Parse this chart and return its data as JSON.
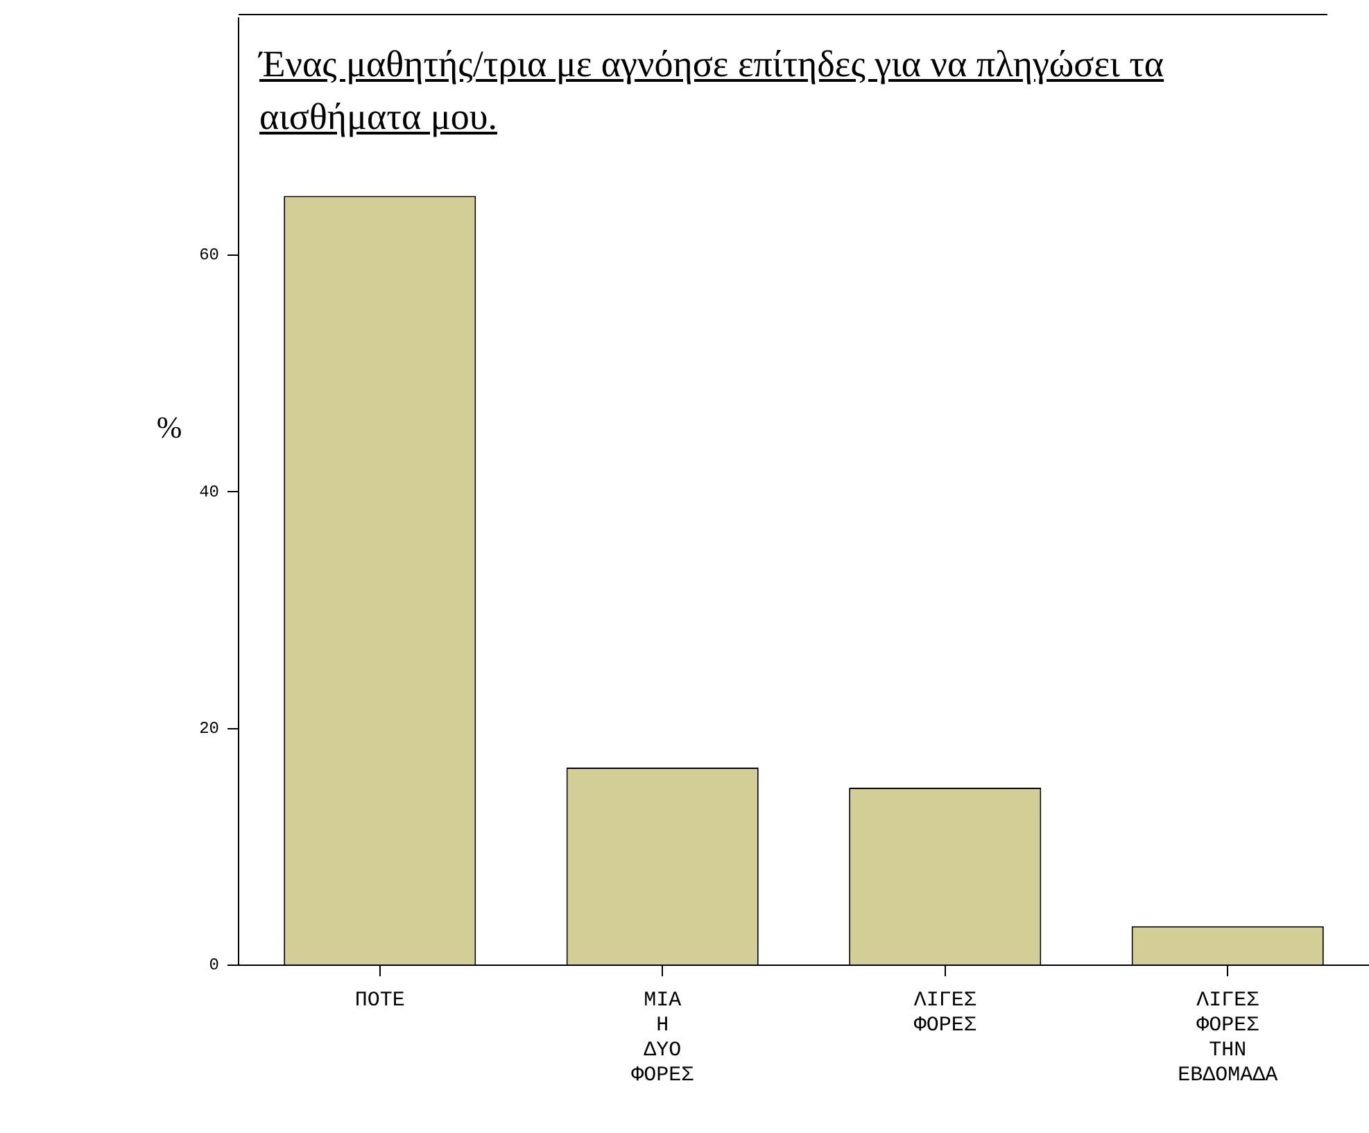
{
  "chart_data": {
    "type": "bar",
    "title": "Ένας μαθητής/τρια με αγνόησε επίτηδες για να πληγώσει τα αισθήματα μου.",
    "ylabel": "%",
    "categories": [
      "ΠΟΤΕ",
      "ΜΙΑ Η ΔΥΟ ΦΟΡΕΣ",
      "ΛΙΓΕΣ ΦΟΡΕΣ",
      "ΛΙΓΕΣ ΦΟΡΕΣ ΤΗΝ ΕΒΔΟΜΑΔΑ"
    ],
    "values": [
      65.0,
      16.7,
      15.0,
      3.3
    ],
    "color": "#d3cd96",
    "ylim": [
      0,
      80
    ],
    "yticks": [
      0,
      20,
      40,
      60
    ],
    "grid": false,
    "legend": false
  }
}
